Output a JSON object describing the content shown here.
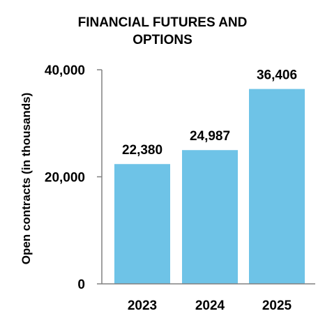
{
  "chart_data": {
    "type": "bar",
    "title_lines": [
      "FINANCIAL FUTURES AND",
      "OPTIONS"
    ],
    "ylabel": "Open contracts (in thousands)",
    "xlabel": "",
    "categories": [
      "2023",
      "2024",
      "2025"
    ],
    "values": [
      22380,
      24987,
      36406
    ],
    "data_labels": [
      "22,380",
      "24,987",
      "36,406"
    ],
    "ylim": [
      0,
      40000
    ],
    "yticks": [
      0,
      20000,
      40000
    ],
    "ytick_labels": [
      "0",
      "20,000",
      "40,000"
    ],
    "grid": false,
    "bar_color": "#6EC3E7",
    "axis_color": "#808080"
  }
}
